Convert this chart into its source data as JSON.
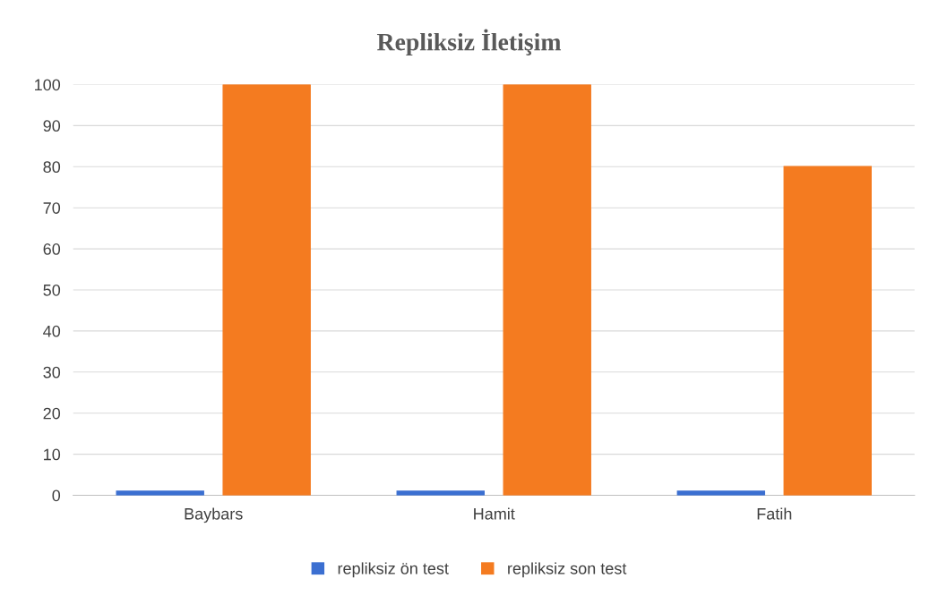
{
  "chart_data": {
    "type": "bar",
    "title": "Repliksiz İletişim",
    "categories": [
      "Baybars",
      "Hamit",
      "Fatih"
    ],
    "series": [
      {
        "name": "repliksiz ön test",
        "color": "#3b6fd1",
        "values": [
          1,
          1,
          1
        ]
      },
      {
        "name": "repliksiz son test",
        "color": "#f47b20",
        "values": [
          100,
          100,
          80
        ]
      }
    ],
    "ylim": [
      0,
      100
    ],
    "yticks": [
      0,
      10,
      20,
      30,
      40,
      50,
      60,
      70,
      80,
      90,
      100
    ],
    "grid": "y",
    "legend": "bottom"
  }
}
